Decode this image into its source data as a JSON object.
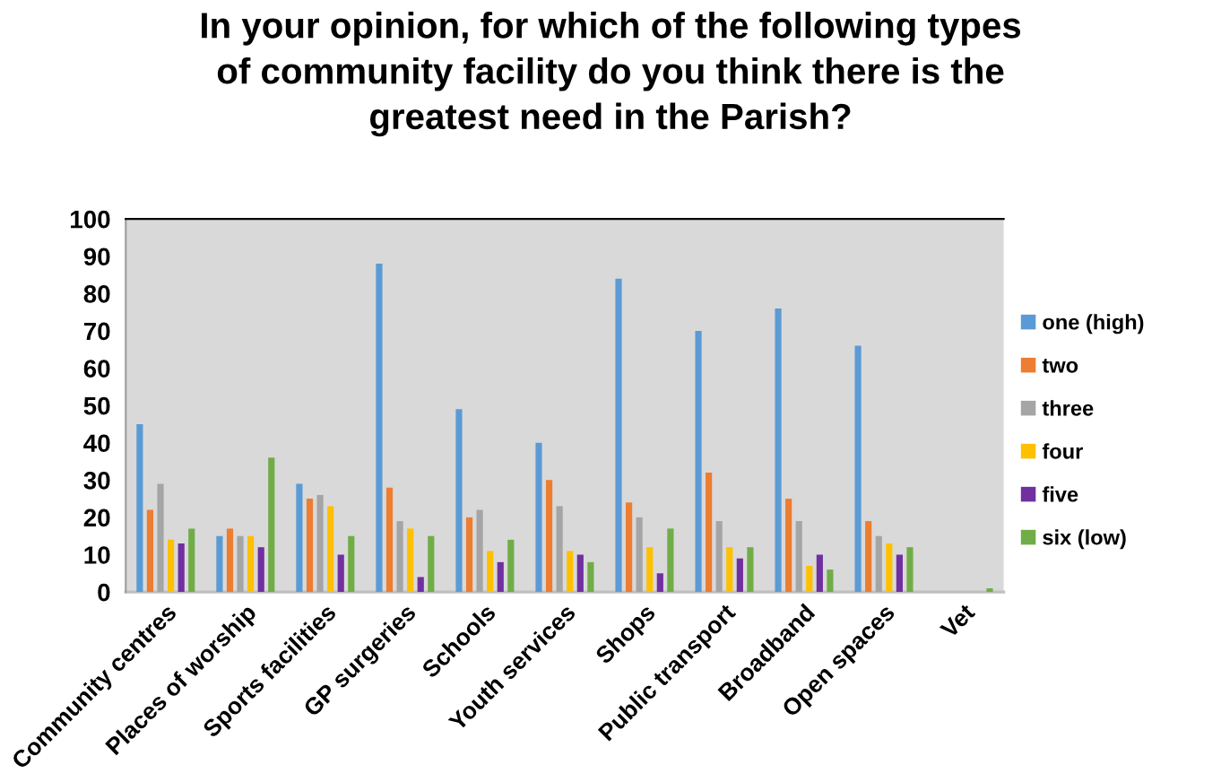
{
  "chart_data": {
    "type": "bar",
    "title": "In your opinion, for which of the following types\nof community facility do you think there is the\ngreatest need in the Parish?",
    "categories": [
      "Community centres",
      "Places of worship",
      "Sports facilities",
      "GP surgeries",
      "Schools",
      "Youth services",
      "Shops",
      "Public transport",
      "Broadband",
      "Open spaces",
      "Vet"
    ],
    "series": [
      {
        "name": "one (high)",
        "color": "#5b9bd5",
        "values": [
          45,
          15,
          29,
          88,
          49,
          40,
          84,
          70,
          76,
          66,
          0
        ]
      },
      {
        "name": "two",
        "color": "#ed7d31",
        "values": [
          22,
          17,
          25,
          28,
          20,
          30,
          24,
          32,
          25,
          19,
          0
        ]
      },
      {
        "name": "three",
        "color": "#a5a5a5",
        "values": [
          29,
          15,
          26,
          19,
          22,
          23,
          20,
          19,
          19,
          15,
          0
        ]
      },
      {
        "name": "four",
        "color": "#ffc000",
        "values": [
          14,
          15,
          23,
          17,
          11,
          11,
          12,
          12,
          7,
          13,
          0
        ]
      },
      {
        "name": "five",
        "color": "#7030a0",
        "values": [
          13,
          12,
          10,
          4,
          8,
          10,
          5,
          9,
          10,
          10,
          0
        ]
      },
      {
        "name": "six (low)",
        "color": "#70ad47",
        "values": [
          17,
          36,
          15,
          15,
          14,
          8,
          17,
          12,
          6,
          12,
          1
        ]
      }
    ],
    "ylim": [
      0,
      100
    ],
    "yticks": [
      0,
      10,
      20,
      30,
      40,
      50,
      60,
      70,
      80,
      90,
      100
    ],
    "grid": false,
    "legend": "right"
  }
}
